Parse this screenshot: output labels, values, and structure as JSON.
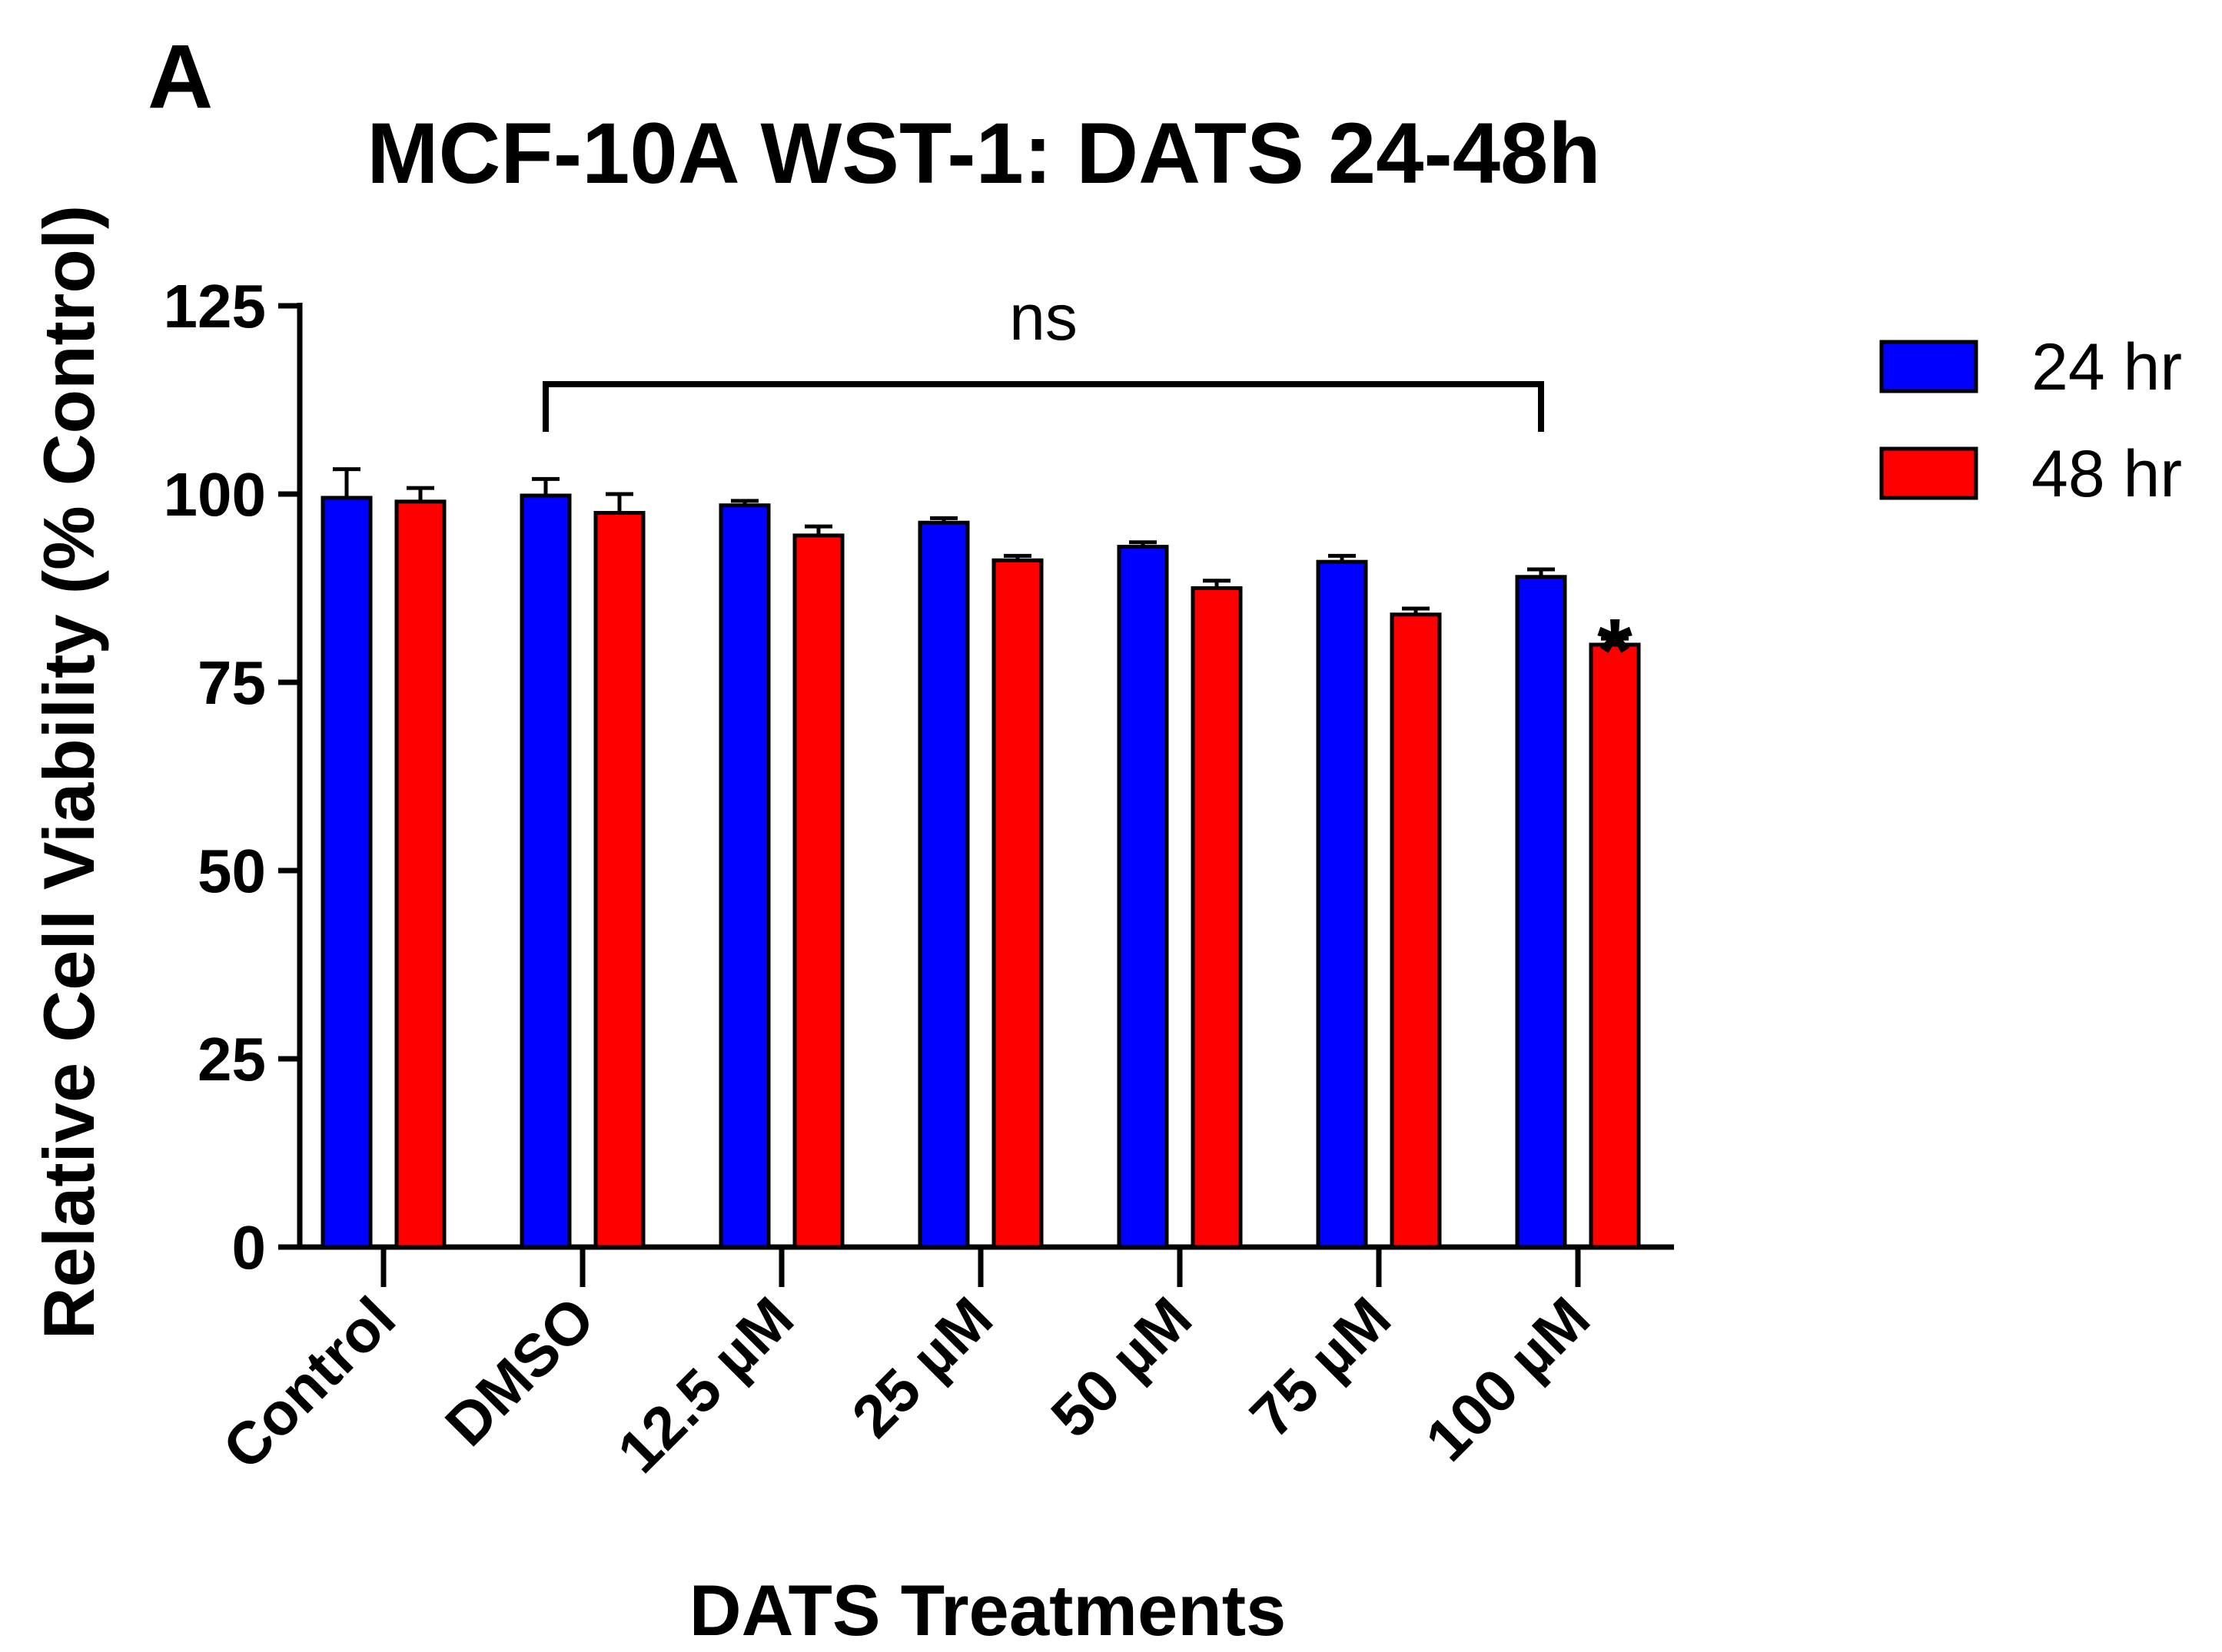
{
  "panel_label": "A",
  "chart_data": {
    "type": "bar",
    "title": "MCF-10A WST-1: DATS 24-48h",
    "xlabel": "DATS Treatments",
    "ylabel": "Relative Cell Viability (% Control)",
    "ylim": [
      0,
      125
    ],
    "yticks": [
      0,
      25,
      50,
      75,
      100,
      125
    ],
    "categories": [
      "Control",
      "DMSO",
      "12.5 µM",
      "25 µM",
      "50 µM",
      "75 µM",
      "100 µM"
    ],
    "series": [
      {
        "name": "24 hr",
        "color": "#0000ff",
        "values": [
          99.5,
          99.8,
          98.5,
          96.2,
          93.0,
          91.0,
          89.0
        ],
        "errors": [
          3.8,
          2.2,
          0.6,
          0.6,
          0.6,
          0.8,
          1.0
        ]
      },
      {
        "name": "48 hr",
        "color": "#ff0000",
        "values": [
          99.0,
          97.5,
          94.5,
          91.2,
          87.5,
          84.0,
          80.0
        ],
        "errors": [
          1.8,
          2.5,
          1.2,
          0.6,
          1.0,
          0.8,
          0.8
        ]
      }
    ],
    "legend_position": "top-right",
    "annotations": {
      "bracket_label": "ns",
      "bracket_from_category": 1,
      "bracket_to_category": 6,
      "significance_marker": "*",
      "significance_category": 6,
      "significance_series": 1
    }
  }
}
